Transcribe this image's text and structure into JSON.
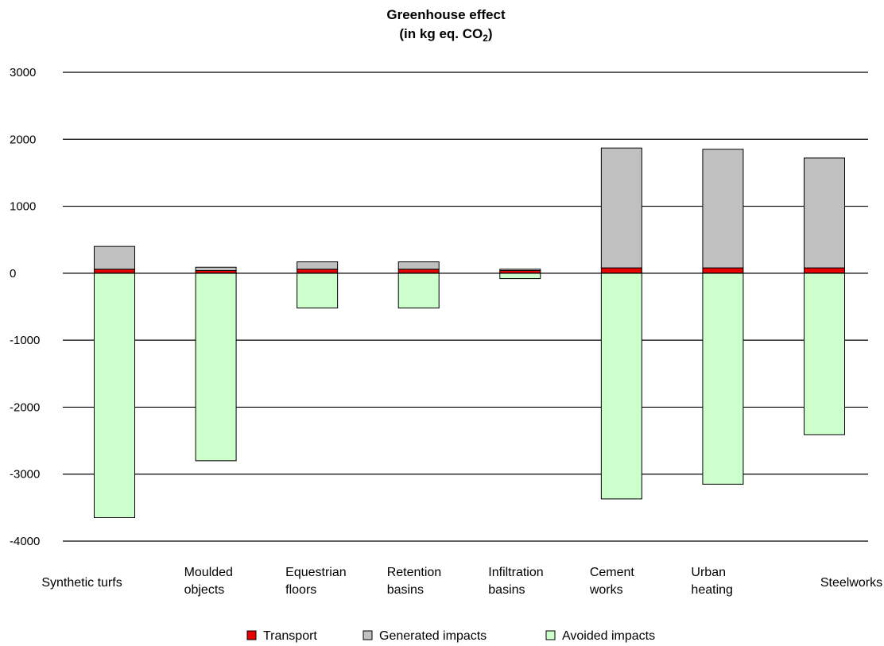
{
  "chart_data": {
    "type": "bar",
    "stacked": true,
    "title": "Greenhouse effect",
    "subtitle": {
      "prefix": "(in kg eq. CO",
      "sub": "2",
      "suffix": ")"
    },
    "ylim": [
      -4000,
      3000
    ],
    "yticks": [
      3000,
      2000,
      1000,
      0,
      -1000,
      -2000,
      -3000,
      -4000
    ],
    "grid": true,
    "legend_position": "bottom",
    "categories": [
      [
        "Synthetic turfs"
      ],
      [
        "Moulded",
        "objects"
      ],
      [
        "Equestrian",
        "floors"
      ],
      [
        "Retention",
        "basins"
      ],
      [
        "Infiltration",
        "basins"
      ],
      [
        "Cement",
        "works"
      ],
      [
        "Urban",
        "heating"
      ],
      [
        "Steelworks"
      ]
    ],
    "series": [
      {
        "name": "Transport",
        "color": "#e60000",
        "values": [
          60,
          40,
          60,
          60,
          40,
          80,
          80,
          80
        ]
      },
      {
        "name": "Generated impacts",
        "color": "#c0c0c0",
        "values": [
          340,
          50,
          110,
          110,
          20,
          1790,
          1770,
          1640
        ]
      },
      {
        "name": "Avoided impacts",
        "color": "#ccffcc",
        "values": [
          -3650,
          -2800,
          -520,
          -520,
          -80,
          -3370,
          -3150,
          -2410
        ]
      }
    ]
  }
}
